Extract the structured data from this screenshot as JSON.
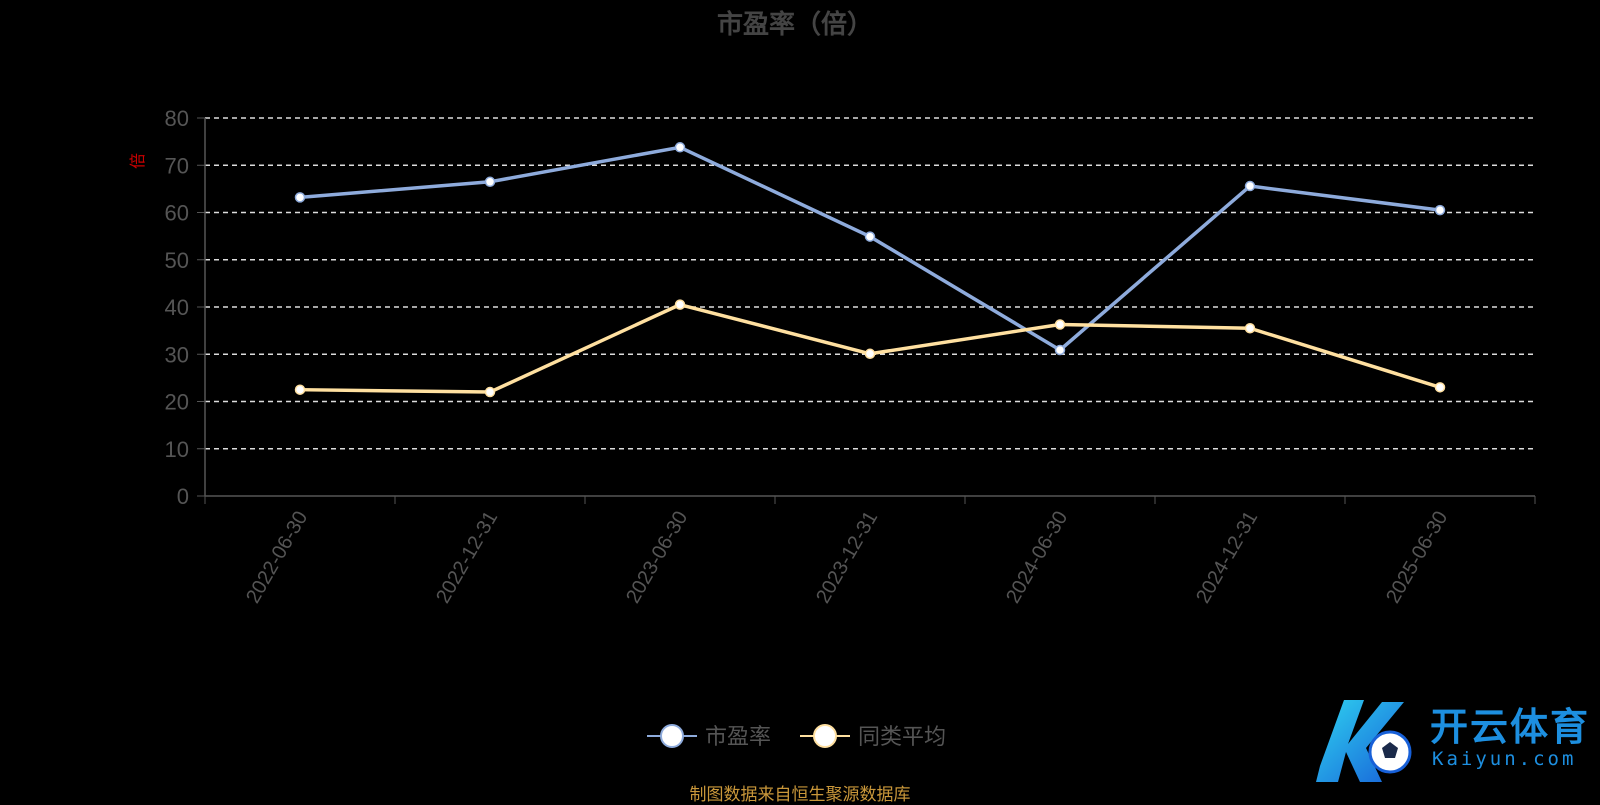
{
  "chart_data": {
    "type": "line",
    "title": "市盈率（倍）",
    "ylabel": "倍",
    "ylim": [
      0,
      80
    ],
    "yticks": [
      0,
      10,
      20,
      30,
      40,
      50,
      60,
      70,
      80
    ],
    "grid": true,
    "categories": [
      "2022-06-30",
      "2022-12-31",
      "2023-06-30",
      "2023-12-31",
      "2024-06-30",
      "2024-12-31",
      "2025-06-30"
    ],
    "series": [
      {
        "name": "市盈率",
        "values": [
          63.2,
          66.5,
          73.8,
          54.9,
          30.9,
          65.6,
          60.5
        ],
        "color": "#8eabdc"
      },
      {
        "name": "同类平均",
        "values": [
          22.5,
          22.0,
          40.5,
          30.1,
          36.3,
          35.5,
          23.0
        ],
        "color": "#ffe0a0"
      }
    ]
  },
  "footer": {
    "source": "制图数据来自恒生聚源数据库"
  },
  "logo": {
    "cn": "开云体育",
    "en": "Kaiyun.com"
  }
}
